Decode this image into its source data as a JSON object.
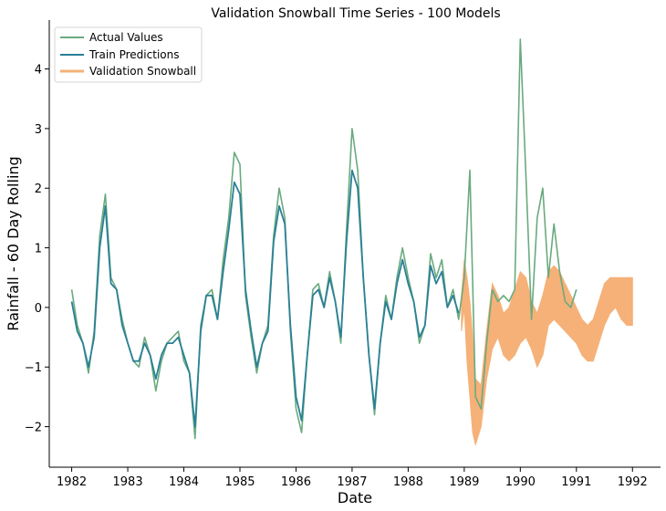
{
  "chart_data": {
    "type": "line",
    "title": "Validation Snowball Time Series - 100 Models",
    "xlabel": "Date",
    "ylabel": "Rainfall - 60 Day Rolling",
    "xlim": [
      1981.6,
      1992.5
    ],
    "ylim": [
      -2.68,
      4.82
    ],
    "x_ticks": [
      1982,
      1983,
      1984,
      1985,
      1986,
      1987,
      1988,
      1989,
      1990,
      1991,
      1992
    ],
    "x_tick_labels": [
      "1982",
      "1983",
      "1984",
      "1985",
      "1986",
      "1987",
      "1988",
      "1989",
      "1990",
      "1991",
      "1992"
    ],
    "y_ticks": [
      -2,
      -1,
      0,
      1,
      2,
      3,
      4
    ],
    "y_tick_labels": [
      "−2",
      "−1",
      "0",
      "1",
      "2",
      "3",
      "4"
    ],
    "legend_position": "upper-left",
    "grid": false,
    "series": [
      {
        "name": "Actual Values",
        "color": "#6aaa7e",
        "x": [
          1982.0,
          1982.1,
          1982.2,
          1982.3,
          1982.4,
          1982.5,
          1982.6,
          1982.7,
          1982.8,
          1982.9,
          1983.0,
          1983.1,
          1983.2,
          1983.3,
          1983.4,
          1983.5,
          1983.6,
          1983.7,
          1983.8,
          1983.9,
          1984.0,
          1984.1,
          1984.2,
          1984.3,
          1984.4,
          1984.5,
          1984.6,
          1984.7,
          1984.8,
          1984.9,
          1985.0,
          1985.1,
          1985.2,
          1985.3,
          1985.4,
          1985.5,
          1985.6,
          1985.7,
          1985.8,
          1985.9,
          1986.0,
          1986.1,
          1986.2,
          1986.3,
          1986.4,
          1986.5,
          1986.6,
          1986.7,
          1986.8,
          1986.9,
          1987.0,
          1987.1,
          1987.2,
          1987.3,
          1987.4,
          1987.5,
          1987.6,
          1987.7,
          1987.8,
          1987.9,
          1988.0,
          1988.1,
          1988.2,
          1988.3,
          1988.4,
          1988.5,
          1988.6,
          1988.7,
          1988.8,
          1988.9,
          1989.0,
          1989.1,
          1989.2,
          1989.3,
          1989.4,
          1989.5,
          1989.6,
          1989.7,
          1989.8,
          1989.9,
          1990.0,
          1990.1,
          1990.2,
          1990.3,
          1990.4,
          1990.5,
          1990.6,
          1990.7,
          1990.8,
          1990.9,
          1991.0
        ],
        "y": [
          0.3,
          -0.3,
          -0.6,
          -1.1,
          -0.4,
          1.2,
          1.9,
          0.5,
          0.3,
          -0.2,
          -0.6,
          -0.9,
          -1.0,
          -0.5,
          -0.8,
          -1.4,
          -0.9,
          -0.6,
          -0.5,
          -0.4,
          -0.9,
          -1.1,
          -2.2,
          -0.3,
          0.2,
          0.3,
          -0.2,
          0.8,
          1.5,
          2.6,
          2.4,
          0.2,
          -0.5,
          -1.1,
          -0.6,
          -0.3,
          1.2,
          2.0,
          1.5,
          -0.4,
          -1.7,
          -2.1,
          -0.8,
          0.3,
          0.4,
          0.0,
          0.6,
          0.1,
          -0.6,
          1.3,
          3.0,
          2.3,
          0.5,
          -0.8,
          -1.8,
          -0.6,
          0.2,
          -0.2,
          0.5,
          1.0,
          0.5,
          0.1,
          -0.6,
          -0.3,
          0.9,
          0.5,
          0.8,
          0.0,
          0.3,
          -0.2,
          0.5,
          2.3,
          -1.5,
          -1.7,
          -0.6,
          0.3,
          0.1,
          0.2,
          0.1,
          0.3,
          4.5,
          2.2,
          -0.2,
          1.5,
          2.0,
          0.5,
          1.4,
          0.6,
          0.1,
          0.0,
          0.3
        ]
      },
      {
        "name": "Train Predictions",
        "color": "#2b8096",
        "x": [
          1982.0,
          1982.1,
          1982.2,
          1982.3,
          1982.4,
          1982.5,
          1982.6,
          1982.7,
          1982.8,
          1982.9,
          1983.0,
          1983.1,
          1983.2,
          1983.3,
          1983.4,
          1983.5,
          1983.6,
          1983.7,
          1983.8,
          1983.9,
          1984.0,
          1984.1,
          1984.2,
          1984.3,
          1984.4,
          1984.5,
          1984.6,
          1984.7,
          1984.8,
          1984.9,
          1985.0,
          1985.1,
          1985.2,
          1985.3,
          1985.4,
          1985.5,
          1985.6,
          1985.7,
          1985.8,
          1985.9,
          1986.0,
          1986.1,
          1986.2,
          1986.3,
          1986.4,
          1986.5,
          1986.6,
          1986.7,
          1986.8,
          1986.9,
          1987.0,
          1987.1,
          1987.2,
          1987.3,
          1987.4,
          1987.5,
          1987.6,
          1987.7,
          1987.8,
          1987.9,
          1988.0,
          1988.1,
          1988.2,
          1988.3,
          1988.4,
          1988.5,
          1988.6,
          1988.7,
          1988.8,
          1988.9
        ],
        "y": [
          0.1,
          -0.4,
          -0.6,
          -1.0,
          -0.5,
          1.0,
          1.7,
          0.4,
          0.3,
          -0.3,
          -0.6,
          -0.9,
          -0.9,
          -0.6,
          -0.8,
          -1.2,
          -0.8,
          -0.6,
          -0.6,
          -0.5,
          -0.8,
          -1.1,
          -2.0,
          -0.4,
          0.2,
          0.2,
          -0.2,
          0.6,
          1.3,
          2.1,
          1.9,
          0.3,
          -0.4,
          -1.0,
          -0.6,
          -0.4,
          1.1,
          1.7,
          1.4,
          -0.3,
          -1.5,
          -1.9,
          -0.8,
          0.2,
          0.3,
          0.0,
          0.5,
          0.1,
          -0.5,
          1.1,
          2.3,
          2.0,
          0.5,
          -0.8,
          -1.7,
          -0.6,
          0.1,
          -0.2,
          0.4,
          0.8,
          0.4,
          0.1,
          -0.5,
          -0.3,
          0.7,
          0.4,
          0.6,
          0.0,
          0.2,
          -0.1
        ]
      },
      {
        "name": "Validation Snowball",
        "color": "#f5b178",
        "x": [
          1988.95,
          1989.0,
          1989.05,
          1989.1,
          1989.15,
          1989.2,
          1989.3,
          1989.4,
          1989.5,
          1989.6,
          1989.7,
          1989.8,
          1989.9,
          1990.0,
          1990.1,
          1990.2,
          1990.3,
          1990.4,
          1990.5,
          1990.6,
          1990.7,
          1990.8,
          1990.9,
          1991.0,
          1991.1,
          1991.2,
          1991.3,
          1991.4,
          1991.5,
          1991.6,
          1991.7,
          1991.8,
          1991.9,
          1992.0
        ],
        "y_upper": [
          0.2,
          0.8,
          0.5,
          0.1,
          -0.5,
          -1.2,
          -1.3,
          -0.4,
          0.4,
          0.2,
          -0.1,
          0.0,
          0.3,
          0.6,
          0.5,
          0.1,
          -0.1,
          0.2,
          0.6,
          0.7,
          0.6,
          0.4,
          0.2,
          0.0,
          -0.2,
          -0.3,
          -0.2,
          0.1,
          0.4,
          0.5,
          0.5,
          0.5,
          0.5,
          0.5
        ],
        "y_lower": [
          -0.4,
          0.0,
          -0.9,
          -1.5,
          -2.1,
          -2.3,
          -2.0,
          -1.2,
          -0.7,
          -0.5,
          -0.8,
          -0.9,
          -0.8,
          -0.6,
          -0.5,
          -0.7,
          -1.0,
          -0.8,
          -0.3,
          -0.2,
          -0.3,
          -0.4,
          -0.5,
          -0.6,
          -0.8,
          -0.9,
          -0.9,
          -0.6,
          -0.3,
          -0.1,
          0.0,
          -0.2,
          -0.3,
          -0.3
        ]
      }
    ]
  }
}
